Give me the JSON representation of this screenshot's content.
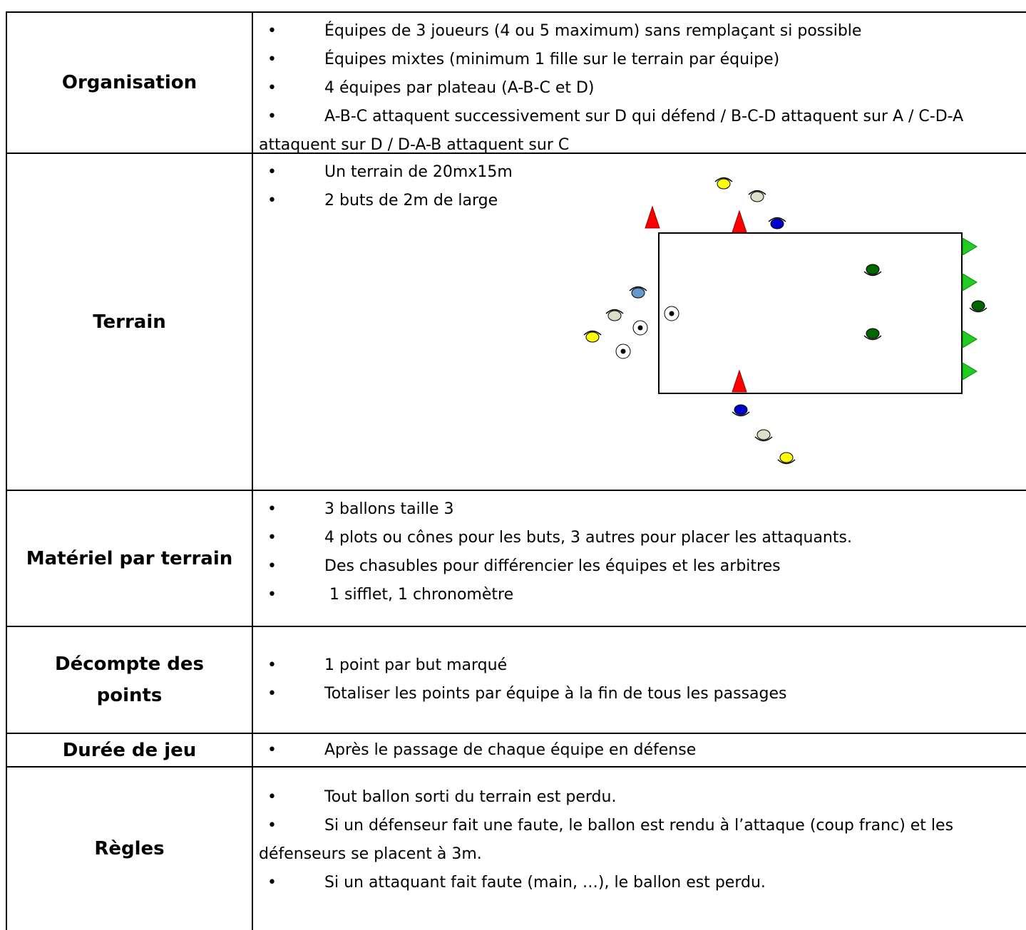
{
  "table": {
    "rows": [
      {
        "label": "Organisation",
        "items": [
          "Équipes de 3 joueurs (4 ou 5 maximum) sans remplaçant si possible",
          "Équipes mixtes (minimum 1 fille sur le terrain par équipe)",
          "4 équipes par plateau (A-B-C et D)",
          "A-B-C attaquent successivement sur D qui défend / B-C-D attaquent sur A / C-D-A attaquent sur D / D-A-B attaquent sur C"
        ]
      },
      {
        "label": "Terrain",
        "items": [
          "Un terrain de 20mx15m",
          "2 buts de 2m de large"
        ]
      },
      {
        "label": "Matériel par terrain",
        "items": [
          "3 ballons taille 3",
          "4 plots ou cônes pour les buts, 3 autres pour placer les attaquants.",
          "Des chasubles pour différencier les équipes et les arbitres",
          " 1 sifflet, 1 chronomètre"
        ]
      },
      {
        "label": "Décompte des points",
        "items": [
          "1 point par but marqué",
          "Totaliser les points par équipe à la fin de tous les passages"
        ]
      },
      {
        "label": "Durée de jeu",
        "items": [
          "Après le passage de chaque équipe en défense"
        ]
      },
      {
        "label": "Règles",
        "items": [
          "Tout ballon sorti du terrain est perdu.",
          "Si un défenseur fait une faute, le ballon est rendu à l’attaque (coup franc) et les défenseurs se placent à 3m.",
          "Si un attaquant fait faute (main, …), le ballon est perdu."
        ]
      }
    ]
  }
}
